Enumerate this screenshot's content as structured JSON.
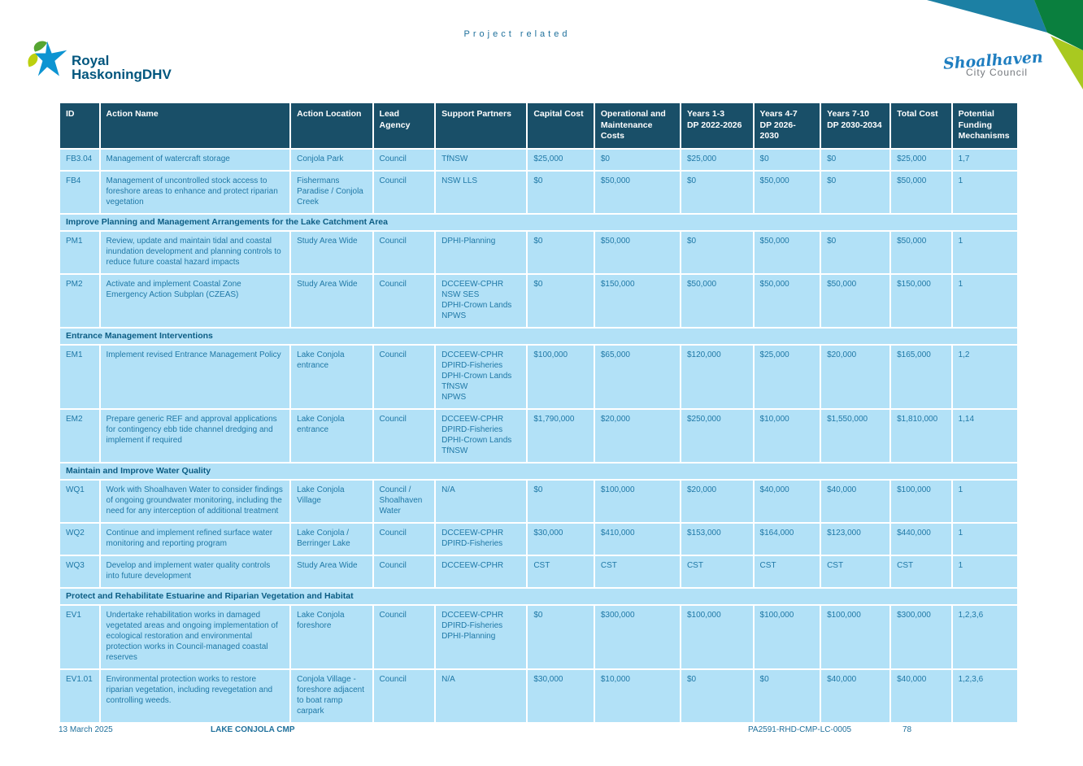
{
  "page": {
    "header_label": "Project related"
  },
  "logos": {
    "rhdhv_line1": "Royal",
    "rhdhv_line2": "HaskoningDHV",
    "council_line1": "Shoalhaven",
    "council_line2": "City Council"
  },
  "table": {
    "columns": [
      {
        "key": "id",
        "label": "ID"
      },
      {
        "key": "action-name",
        "label": "Action Name"
      },
      {
        "key": "action-location",
        "label": "Action Location"
      },
      {
        "key": "lead-agency",
        "label": "Lead Agency"
      },
      {
        "key": "support-partners",
        "label": "Support Partners"
      },
      {
        "key": "capital-cost",
        "label": "Capital Cost"
      },
      {
        "key": "om-costs",
        "label": "Operational and\nMaintenance Costs"
      },
      {
        "key": "years-1-3",
        "label": "Years 1-3\nDP 2022-2026"
      },
      {
        "key": "years-4-7",
        "label": "Years 4-7\nDP 2026-2030"
      },
      {
        "key": "years-7-10",
        "label": "Years 7-10\nDP 2030-2034"
      },
      {
        "key": "total-cost",
        "label": "Total Cost"
      },
      {
        "key": "funding-mechanisms",
        "label": "Potential\nFunding\nMechanisms"
      }
    ],
    "rows": [
      {
        "type": "action",
        "cells": [
          "FB3.04",
          "Management of watercraft storage",
          "Conjola Park",
          "Council",
          "TfNSW",
          "$25,000",
          "$0",
          "$25,000",
          "$0",
          "$0",
          "$25,000",
          "1,7"
        ]
      },
      {
        "type": "action",
        "cells": [
          "FB4",
          "Management of uncontrolled stock access to foreshore areas to enhance and protect riparian vegetation",
          "Fishermans Paradise / Conjola Creek",
          "Council",
          "NSW LLS",
          "$0",
          "$50,000",
          "$0",
          "$50,000",
          "$0",
          "$50,000",
          "1"
        ]
      },
      {
        "type": "section",
        "label": "Improve Planning and Management Arrangements for the Lake Catchment Area"
      },
      {
        "type": "action",
        "cells": [
          "PM1",
          "Review, update and maintain tidal and coastal inundation development and planning controls to reduce future coastal hazard impacts",
          "Study Area Wide",
          "Council",
          "DPHI-Planning",
          "$0",
          "$50,000",
          "$0",
          "$50,000",
          "$0",
          "$50,000",
          "1"
        ]
      },
      {
        "type": "action",
        "cells": [
          "PM2",
          "Activate and implement Coastal Zone Emergency Action Subplan (CZEAS)",
          "Study Area Wide",
          "Council",
          "DCCEEW-CPHR\nNSW SES\nDPHI-Crown Lands\nNPWS",
          "$0",
          "$150,000",
          "$50,000",
          "$50,000",
          "$50,000",
          "$150,000",
          "1"
        ]
      },
      {
        "type": "section",
        "label": "Entrance Management Interventions"
      },
      {
        "type": "action",
        "cells": [
          "EM1",
          "Implement revised Entrance Management Policy",
          "Lake Conjola entrance",
          "Council",
          "DCCEEW-CPHR\nDPIRD-Fisheries\nDPHI-Crown Lands\nTfNSW\nNPWS",
          "$100,000",
          "$65,000",
          "$120,000",
          "$25,000",
          "$20,000",
          "$165,000",
          "1,2"
        ]
      },
      {
        "type": "action",
        "cells": [
          "EM2",
          "Prepare generic REF and approval applications for contingency ebb tide channel dredging and implement if required",
          "Lake Conjola entrance",
          "Council",
          "DCCEEW-CPHR\nDPIRD-Fisheries\nDPHI-Crown Lands\nTfNSW",
          "$1,790,000",
          "$20,000",
          "$250,000",
          "$10,000",
          "$1,550,000",
          "$1,810,000",
          "1,14"
        ]
      },
      {
        "type": "section",
        "label": "Maintain and Improve Water Quality"
      },
      {
        "type": "action",
        "cells": [
          "WQ1",
          "Work with Shoalhaven Water to consider findings of ongoing groundwater monitoring, including the need for any interception of additional treatment",
          "Lake Conjola Village",
          "Council / Shoalhaven Water",
          "N/A",
          "$0",
          "$100,000",
          "$20,000",
          "$40,000",
          "$40,000",
          "$100,000",
          "1"
        ]
      },
      {
        "type": "action",
        "cells": [
          "WQ2",
          "Continue and implement refined surface water monitoring and reporting program",
          "Lake Conjola / Berringer Lake",
          "Council",
          "DCCEEW-CPHR\nDPIRD-Fisheries",
          "$30,000",
          "$410,000",
          "$153,000",
          "$164,000",
          "$123,000",
          "$440,000",
          "1"
        ]
      },
      {
        "type": "action",
        "cells": [
          "WQ3",
          "Develop and implement water quality controls into future development",
          "Study Area Wide",
          "Council",
          "DCCEEW-CPHR",
          "CST",
          "CST",
          "CST",
          "CST",
          "CST",
          "CST",
          "1"
        ]
      },
      {
        "type": "section",
        "label": "Protect and Rehabilitate Estuarine and Riparian Vegetation and Habitat"
      },
      {
        "type": "action",
        "cells": [
          "EV1",
          "Undertake rehabilitation works in damaged vegetated areas and ongoing implementation of ecological restoration and environmental protection works in Council-managed coastal reserves",
          "Lake Conjola foreshore",
          "Council",
          "DCCEEW-CPHR\nDPIRD-Fisheries\nDPHI-Planning",
          "$0",
          "$300,000",
          "$100,000",
          "$100,000",
          "$100,000",
          "$300,000",
          "1,2,3,6"
        ]
      },
      {
        "type": "action",
        "cells": [
          "EV1.01",
          "Environmental protection works to restore riparian vegetation, including revegetation and controlling weeds.",
          "Conjola Village - foreshore adjacent to boat ramp carpark",
          "Council",
          "N/A",
          "$30,000",
          "$10,000",
          "$0",
          "$0",
          "$40,000",
          "$40,000",
          "1,2,3,6"
        ]
      }
    ]
  },
  "footer": {
    "date": "13 March 2025",
    "doc_title": "LAKE CONJOLA CMP",
    "doc_ref": "PA2591-RHD-CMP-LC-0005",
    "page_number": "78"
  },
  "colors": {
    "header_bg": "#194F68",
    "row_bg": "#B2E1F7",
    "cell_text": "#1F78A6",
    "section_text": "#0C5D84",
    "text_blue": "#20719C",
    "rhdhv_blue": "#00567E",
    "council_blue": "#1F7EC0",
    "council_gray": "#75797E",
    "corner_teal": "#1C80A4",
    "corner_green": "#0A7F3E",
    "corner_lime": "#A9C920",
    "logo_blue": "#0D94D2",
    "logo_green": "#56A531",
    "logo_lime": "#BCD00E"
  }
}
